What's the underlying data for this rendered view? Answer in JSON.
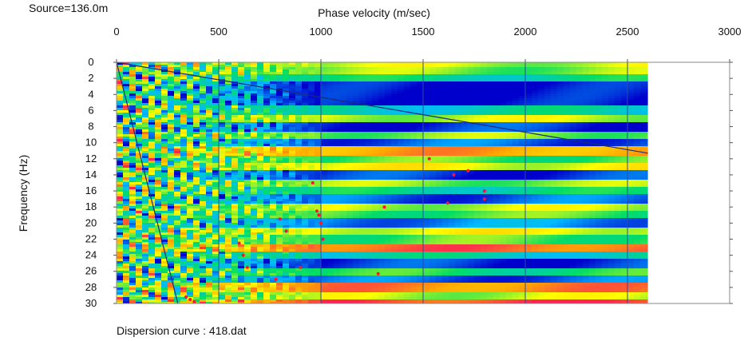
{
  "header": {
    "source_label": "Source=136.0m"
  },
  "footer": {
    "dispersion_label": "Dispersion curve : 418.dat"
  },
  "chart_data": {
    "type": "heatmap",
    "title": "",
    "xlabel": "Phase velocity (m/sec)",
    "ylabel": "Frequency (Hz)",
    "xlim": [
      0,
      3000
    ],
    "ylim": [
      0,
      30
    ],
    "x_ticks": [
      0,
      500,
      1000,
      1500,
      2000,
      2500,
      3000
    ],
    "y_ticks": [
      0,
      2,
      4,
      6,
      8,
      10,
      12,
      14,
      16,
      18,
      20,
      22,
      24,
      26,
      28,
      30
    ],
    "y_inverted": true,
    "x_axis_position": "top",
    "colormap": [
      "#0000cc",
      "#00bbff",
      "#00dd66",
      "#ffff00",
      "#ffaa00",
      "#ff2255"
    ],
    "image_extent": {
      "x": [
        0,
        2600
      ],
      "y": [
        0,
        30
      ]
    },
    "band_profile_by_frequency": [
      {
        "f_from": 0.0,
        "f_to": 0.5,
        "level": 0.55
      },
      {
        "f_from": 0.5,
        "f_to": 1.5,
        "level": 0.5
      },
      {
        "f_from": 1.5,
        "f_to": 2.5,
        "level": 0.35
      },
      {
        "f_from": 2.5,
        "f_to": 5.5,
        "level": 0.0
      },
      {
        "f_from": 5.5,
        "f_to": 6.5,
        "level": 0.3
      },
      {
        "f_from": 6.5,
        "f_to": 7.5,
        "level": 0.55
      },
      {
        "f_from": 7.5,
        "f_to": 8.5,
        "level": 0.05
      },
      {
        "f_from": 8.5,
        "f_to": 9.5,
        "level": 0.5
      },
      {
        "f_from": 9.5,
        "f_to": 10.5,
        "level": 0.1
      },
      {
        "f_from": 10.5,
        "f_to": 11.5,
        "level": 0.8
      },
      {
        "f_from": 11.5,
        "f_to": 12.5,
        "level": 0.45
      },
      {
        "f_from": 12.5,
        "f_to": 13.5,
        "level": 0.6
      },
      {
        "f_from": 13.5,
        "f_to": 14.5,
        "level": 0.05
      },
      {
        "f_from": 14.5,
        "f_to": 15.5,
        "level": 0.5
      },
      {
        "f_from": 15.5,
        "f_to": 16.5,
        "level": 0.35
      },
      {
        "f_from": 16.5,
        "f_to": 17.5,
        "level": 0.1
      },
      {
        "f_from": 17.5,
        "f_to": 18.5,
        "level": 0.55
      },
      {
        "f_from": 18.5,
        "f_to": 19.5,
        "level": 0.45
      },
      {
        "f_from": 19.5,
        "f_to": 20.5,
        "level": 0.15
      },
      {
        "f_from": 20.5,
        "f_to": 21.5,
        "level": 0.6
      },
      {
        "f_from": 21.5,
        "f_to": 22.5,
        "level": 0.45
      },
      {
        "f_from": 22.5,
        "f_to": 23.5,
        "level": 0.9
      },
      {
        "f_from": 23.5,
        "f_to": 24.5,
        "level": 0.3
      },
      {
        "f_from": 24.5,
        "f_to": 25.5,
        "level": 0.05
      },
      {
        "f_from": 25.5,
        "f_to": 26.5,
        "level": 0.4
      },
      {
        "f_from": 26.5,
        "f_to": 27.5,
        "level": 0.1
      },
      {
        "f_from": 27.5,
        "f_to": 28.5,
        "level": 0.85
      },
      {
        "f_from": 28.5,
        "f_to": 29.5,
        "level": 0.55
      },
      {
        "f_from": 29.5,
        "f_to": 30.0,
        "level": 0.95
      }
    ],
    "lines": [
      {
        "name": "",
        "color": "#1a2a7a",
        "x": [
          0,
          2600
        ],
        "y": [
          0,
          11.3
        ]
      },
      {
        "name": "",
        "color": "#1a2a7a",
        "x": [
          0,
          300
        ],
        "y": [
          0,
          30
        ]
      }
    ],
    "dispersion_points": {
      "color": "#ff1133",
      "x": [
        680,
        960,
        980,
        990,
        1000,
        1010,
        800,
        830,
        600,
        620,
        640,
        900,
        780,
        1280,
        1310,
        1530,
        1620,
        1650,
        1720,
        1800,
        1800,
        380,
        360,
        340
      ],
      "y": [
        8.3,
        15.0,
        18.5,
        19.0,
        20.0,
        22.0,
        19.5,
        21.0,
        22.5,
        24.0,
        25.5,
        25.5,
        27.0,
        26.3,
        18.0,
        12.0,
        17.5,
        14.0,
        13.5,
        16.0,
        17.0,
        29.8,
        29.5,
        29.2
      ]
    }
  }
}
